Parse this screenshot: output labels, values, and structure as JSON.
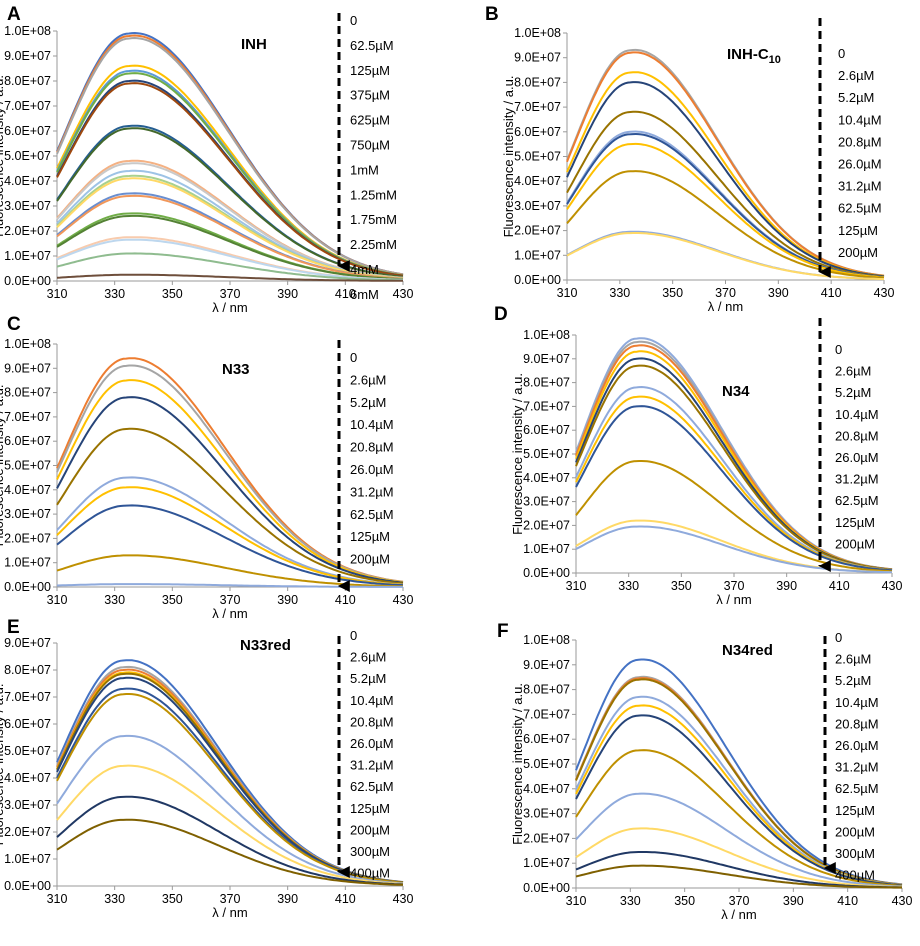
{
  "chart_data": [
    {
      "type": "line",
      "letter": "A",
      "title": "INH",
      "title_sub": "",
      "xlabel": "λ / nm",
      "ylabel": "Fluorescence intensity / a.u.",
      "xlim": [
        310,
        430
      ],
      "ylim": [
        0,
        100000000
      ],
      "xticks": [
        "310",
        "330",
        "350",
        "370",
        "390",
        "410",
        "430"
      ],
      "yticks": [
        "0.0E+00",
        "1.0E+07",
        "2.0E+07",
        "3.0E+07",
        "4.0E+07",
        "5.0E+07",
        "6.0E+07",
        "7.0E+07",
        "8.0E+07",
        "9.0E+07",
        "1.0E+08"
      ],
      "peak_x": 335,
      "width": 22,
      "skew": 1.55,
      "tail": 0.03,
      "labels": [
        "0",
        "62.5µM",
        "125µM",
        "375µM",
        "625µM",
        "750µM",
        "1mM",
        "1.25mM",
        "1.75mM",
        "2.25mM",
        "4mM",
        "6mM"
      ],
      "series": [
        {
          "name": "s1",
          "peak": 99000000,
          "color": "#4472c4"
        },
        {
          "name": "s2",
          "peak": 98000000,
          "color": "#ed7d31"
        },
        {
          "name": "s3",
          "peak": 97000000,
          "color": "#a5a5a5"
        },
        {
          "name": "s4",
          "peak": 86000000,
          "color": "#ffc000"
        },
        {
          "name": "s5",
          "peak": 84000000,
          "color": "#5b9bd5"
        },
        {
          "name": "s6",
          "peak": 83000000,
          "color": "#70ad47"
        },
        {
          "name": "s7",
          "peak": 80000000,
          "color": "#264478"
        },
        {
          "name": "s8",
          "peak": 79000000,
          "color": "#9e480e"
        },
        {
          "name": "s9",
          "peak": 62000000,
          "color": "#255e91"
        },
        {
          "name": "s10",
          "peak": 61000000,
          "color": "#43682b"
        },
        {
          "name": "s11",
          "peak": 48000000,
          "color": "#f4b183"
        },
        {
          "name": "s12",
          "peak": 47000000,
          "color": "#c9c9c9"
        },
        {
          "name": "s13",
          "peak": 44000000,
          "color": "#9dc3e6"
        },
        {
          "name": "s14",
          "peak": 42000000,
          "color": "#a9d18e"
        },
        {
          "name": "s15",
          "peak": 41000000,
          "color": "#ffd966"
        },
        {
          "name": "s16",
          "peak": 35000000,
          "color": "#698ed0"
        },
        {
          "name": "s17",
          "peak": 34000000,
          "color": "#f1975a"
        },
        {
          "name": "s18",
          "peak": 27000000,
          "color": "#70ad47"
        },
        {
          "name": "s19",
          "peak": 26000000,
          "color": "#548235"
        },
        {
          "name": "s20",
          "peak": 17500000,
          "color": "#f8cbad"
        },
        {
          "name": "s21",
          "peak": 16500000,
          "color": "#bdd7ee"
        },
        {
          "name": "s22",
          "peak": 11000000,
          "color": "#8fbc8f"
        },
        {
          "name": "s23",
          "peak": 2500000,
          "color": "#6e4e3b"
        }
      ]
    },
    {
      "type": "line",
      "letter": "B",
      "title": "INH-C",
      "title_sub": "10",
      "xlabel": "λ / nm",
      "ylabel": "Fluorescence intensity / a.u.",
      "xlim": [
        310,
        430
      ],
      "ylim": [
        0,
        100000000
      ],
      "xticks": [
        "310",
        "330",
        "350",
        "370",
        "390",
        "410",
        "430"
      ],
      "yticks": [
        "0.0E+00",
        "1.0E+07",
        "2.0E+07",
        "3.0E+07",
        "4.0E+07",
        "5.0E+07",
        "6.0E+07",
        "7.0E+07",
        "8.0E+07",
        "9.0E+07",
        "1.0E+08"
      ],
      "peak_x": 334,
      "width": 21,
      "skew": 1.55,
      "tail": 0.03,
      "labels": [
        "0",
        "2.6µM",
        "5.2µM",
        "10.4µM",
        "20.8µM",
        "26.0µM",
        "31.2µM",
        "62.5µM",
        "125µM",
        "200µM"
      ],
      "series": [
        {
          "name": "0",
          "peak": 93000000,
          "color": "#a5a5a5"
        },
        {
          "name": "2.6µM",
          "peak": 92000000,
          "color": "#ed7d31"
        },
        {
          "name": "5.2µM",
          "peak": 84000000,
          "color": "#ffc000"
        },
        {
          "name": "10.4µM",
          "peak": 80000000,
          "color": "#264478"
        },
        {
          "name": "20.8µM",
          "peak": 68000000,
          "color": "#997300"
        },
        {
          "name": "26.0µM",
          "peak": 60000000,
          "color": "#8faadc"
        },
        {
          "name": "31.2µM",
          "peak": 59000000,
          "color": "#2f5597"
        },
        {
          "name": "62.5µM",
          "peak": 55000000,
          "color": "#ffc000"
        },
        {
          "name": "125µM",
          "peak": 44000000,
          "color": "#bf9000"
        },
        {
          "name": "200µM",
          "peak": 19500000,
          "color": "#8faadc"
        },
        {
          "name": "200µM-b",
          "peak": 19000000,
          "color": "#ffd966"
        }
      ]
    },
    {
      "type": "line",
      "letter": "C",
      "title": "N33",
      "title_sub": "",
      "xlabel": "λ / nm",
      "ylabel": "Fluorescence intensity / a.u.",
      "xlim": [
        310,
        430
      ],
      "ylim": [
        0,
        100000000
      ],
      "xticks": [
        "310",
        "330",
        "350",
        "370",
        "390",
        "410",
        "430"
      ],
      "yticks": [
        "0.0E+00",
        "1.0E+07",
        "2.0E+07",
        "3.0E+07",
        "4.0E+07",
        "5.0E+07",
        "6.0E+07",
        "7.0E+07",
        "8.0E+07",
        "9.0E+07",
        "1.0E+08"
      ],
      "peak_x": 334,
      "width": 21,
      "skew": 1.6,
      "tail": 0.03,
      "labels": [
        "0",
        "2.6µM",
        "5.2µM",
        "10.4µM",
        "20.8µM",
        "26.0µM",
        "31.2µM",
        "62.5µM",
        "125µM",
        "200µM"
      ],
      "series": [
        {
          "name": "0",
          "peak": 94000000,
          "color": "#ed7d31"
        },
        {
          "name": "2.6µM",
          "peak": 91000000,
          "color": "#a5a5a5"
        },
        {
          "name": "5.2µM",
          "peak": 85000000,
          "color": "#ffc000"
        },
        {
          "name": "10.4µM",
          "peak": 78000000,
          "color": "#264478"
        },
        {
          "name": "20.8µM",
          "peak": 65000000,
          "color": "#997300"
        },
        {
          "name": "26.0µM",
          "peak": 45000000,
          "color": "#8faadc"
        },
        {
          "name": "31.2µM",
          "peak": 41000000,
          "color": "#ffc000"
        },
        {
          "name": "62.5µM",
          "peak": 33500000,
          "color": "#2f5597"
        },
        {
          "name": "125µM",
          "peak": 13000000,
          "color": "#bf9000"
        },
        {
          "name": "200µM",
          "peak": 1200000,
          "color": "#8faadc"
        }
      ]
    },
    {
      "type": "line",
      "letter": "D",
      "title": "N34",
      "title_sub": "",
      "xlabel": "λ / nm",
      "ylabel": "Fluorescence intensity / a.u.",
      "xlim": [
        310,
        430
      ],
      "ylim": [
        0,
        100000000
      ],
      "xticks": [
        "310",
        "330",
        "350",
        "370",
        "390",
        "410",
        "430"
      ],
      "yticks": [
        "0.0E+00",
        "1.0E+07",
        "2.0E+07",
        "3.0E+07",
        "4.0E+07",
        "5.0E+07",
        "6.0E+07",
        "7.0E+07",
        "8.0E+07",
        "9.0E+07",
        "1.0E+08"
      ],
      "peak_x": 333,
      "width": 20,
      "skew": 1.6,
      "tail": 0.03,
      "labels": [
        "0",
        "2.6µM",
        "5.2µM",
        "10.4µM",
        "20.8µM",
        "26.0µM",
        "31.2µM",
        "62.5µM",
        "125µM",
        "200µM"
      ],
      "series": [
        {
          "name": "0",
          "peak": 98500000,
          "color": "#8faadc"
        },
        {
          "name": "2.6µM",
          "peak": 97000000,
          "color": "#a5a5a5"
        },
        {
          "name": "5.2µM",
          "peak": 95500000,
          "color": "#ed7d31"
        },
        {
          "name": "10.4µM",
          "peak": 93000000,
          "color": "#ffc000"
        },
        {
          "name": "20.8µM",
          "peak": 90000000,
          "color": "#264478"
        },
        {
          "name": "26.0µM",
          "peak": 87000000,
          "color": "#997300"
        },
        {
          "name": "31.2µM",
          "peak": 78000000,
          "color": "#8faadc"
        },
        {
          "name": "62.5µM",
          "peak": 74000000,
          "color": "#ffc000"
        },
        {
          "name": "125µM",
          "peak": 70000000,
          "color": "#2f5597"
        },
        {
          "name": "200µM",
          "peak": 47000000,
          "color": "#bf9000"
        },
        {
          "name": "200µM-b",
          "peak": 22000000,
          "color": "#ffd966"
        },
        {
          "name": "200µM-c",
          "peak": 19500000,
          "color": "#8faadc"
        }
      ]
    },
    {
      "type": "line",
      "letter": "E",
      "title": "N33red",
      "title_sub": "",
      "xlabel": "λ / nm",
      "ylabel": "Fluorescence intensity / a.u.",
      "xlim": [
        310,
        430
      ],
      "ylim": [
        0,
        90000000
      ],
      "xticks": [
        "310",
        "330",
        "350",
        "370",
        "390",
        "410",
        "430"
      ],
      "yticks": [
        "0.0E+00",
        "1.0E+07",
        "2.0E+07",
        "3.0E+07",
        "4.0E+07",
        "5.0E+07",
        "6.0E+07",
        "7.0E+07",
        "8.0E+07",
        "9.0E+07"
      ],
      "peak_x": 333,
      "width": 21,
      "skew": 1.55,
      "tail": 0.03,
      "labels": [
        "0",
        "2.6µM",
        "5.2µM",
        "10.4µM",
        "20.8µM",
        "26.0µM",
        "31.2µM",
        "62.5µM",
        "125µM",
        "200µM",
        "300µM",
        "400µM"
      ],
      "series": [
        {
          "name": "0",
          "peak": 83500000,
          "color": "#4472c4"
        },
        {
          "name": "2.6µM",
          "peak": 81000000,
          "color": "#a5a5a5"
        },
        {
          "name": "5.2µM",
          "peak": 80000000,
          "color": "#ed7d31"
        },
        {
          "name": "10.4µM",
          "peak": 79000000,
          "color": "#ffc000"
        },
        {
          "name": "20.8µM",
          "peak": 78500000,
          "color": "#997300"
        },
        {
          "name": "26.0µM",
          "peak": 77000000,
          "color": "#264478"
        },
        {
          "name": "31.2µM",
          "peak": 73000000,
          "color": "#2f5597"
        },
        {
          "name": "62.5µM",
          "peak": 71000000,
          "color": "#bf9000"
        },
        {
          "name": "125µM",
          "peak": 55500000,
          "color": "#8faadc"
        },
        {
          "name": "200µM",
          "peak": 44500000,
          "color": "#ffd966"
        },
        {
          "name": "300µM",
          "peak": 33000000,
          "color": "#203864"
        },
        {
          "name": "400µM",
          "peak": 24500000,
          "color": "#7f6000"
        }
      ]
    },
    {
      "type": "line",
      "letter": "F",
      "title": "N34red",
      "title_sub": "",
      "xlabel": "λ / nm",
      "ylabel": "Fluorescence intensity / a.u.",
      "xlim": [
        310,
        430
      ],
      "ylim": [
        0,
        100000000
      ],
      "xticks": [
        "310",
        "330",
        "350",
        "370",
        "390",
        "410",
        "430"
      ],
      "yticks": [
        "0.0E+00",
        "1.0E+07",
        "2.0E+07",
        "3.0E+07",
        "4.0E+07",
        "5.0E+07",
        "6.0E+07",
        "7.0E+07",
        "8.0E+07",
        "9.0E+07",
        "1.0E+08"
      ],
      "peak_x": 333,
      "width": 20,
      "skew": 1.6,
      "tail": 0.03,
      "labels": [
        "0",
        "2.6µM",
        "5.2µM",
        "10.4µM",
        "20.8µM",
        "26.0µM",
        "31.2µM",
        "62.5µM",
        "125µM",
        "200µM",
        "300µM",
        "400µM"
      ],
      "series": [
        {
          "name": "0",
          "peak": 92000000,
          "color": "#4472c4"
        },
        {
          "name": "2.6µM",
          "peak": 85000000,
          "color": "#a5a5a5"
        },
        {
          "name": "5.2µM",
          "peak": 84500000,
          "color": "#ed7d31"
        },
        {
          "name": "10.4µM",
          "peak": 84000000,
          "color": "#997300"
        },
        {
          "name": "20.8µM",
          "peak": 77000000,
          "color": "#8faadc"
        },
        {
          "name": "26.0µM",
          "peak": 73500000,
          "color": "#ffc000"
        },
        {
          "name": "31.2µM",
          "peak": 69500000,
          "color": "#264478"
        },
        {
          "name": "62.5µM",
          "peak": 55500000,
          "color": "#bf9000"
        },
        {
          "name": "125µM",
          "peak": 38000000,
          "color": "#8faadc"
        },
        {
          "name": "200µM",
          "peak": 24000000,
          "color": "#ffd966"
        },
        {
          "name": "300µM",
          "peak": 14500000,
          "color": "#203864"
        },
        {
          "name": "400µM",
          "peak": 9000000,
          "color": "#7f6000"
        }
      ]
    }
  ]
}
